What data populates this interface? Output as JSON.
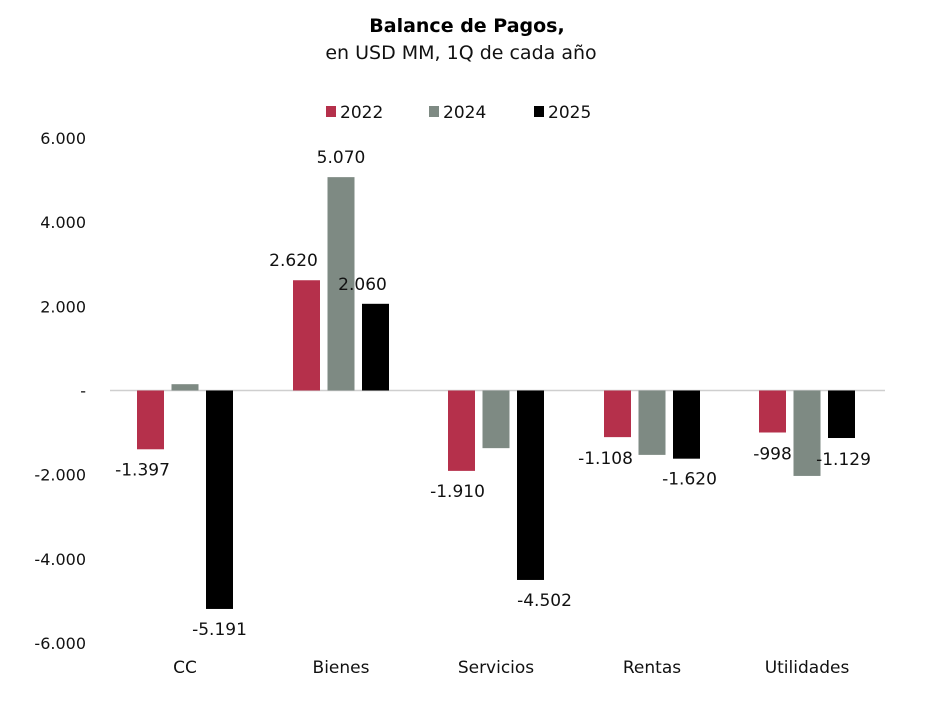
{
  "chart_data": {
    "type": "bar",
    "title": "Balance de Pagos,",
    "subtitle": "en USD MM, 1Q de cada año",
    "xlabel": "",
    "ylabel": "",
    "categories": [
      "CC",
      "Bienes",
      "Servicios",
      "Rentas",
      "Utilidades"
    ],
    "ylim": [
      -6000,
      6000
    ],
    "yticks": [
      6000,
      4000,
      2000,
      0,
      -2000,
      -4000,
      -6000
    ],
    "ytick_labels": [
      "6.000",
      "4.000",
      "2.000",
      "-",
      "-2.000",
      "-4.000",
      "-6.000"
    ],
    "grid": false,
    "legend_position": "top-center",
    "series": [
      {
        "name": "2022",
        "color": "#b5304b",
        "values": [
          -1397,
          2620,
          -1910,
          -1108,
          -998
        ],
        "labels": [
          "-1.397",
          "2.620",
          "-1.910",
          "-1.108",
          "-998"
        ]
      },
      {
        "name": "2024",
        "color": "#7e8a83",
        "values": [
          150,
          5070,
          -1370,
          -1530,
          -2030
        ],
        "labels": [
          "",
          "5.070",
          "",
          "",
          ""
        ]
      },
      {
        "name": "2025",
        "color": "#000000",
        "values": [
          -5191,
          2060,
          -4502,
          -1620,
          -1129
        ],
        "labels": [
          "-5.191",
          "2.060",
          "-4.502",
          "-1.620",
          "-1.129"
        ]
      }
    ]
  }
}
